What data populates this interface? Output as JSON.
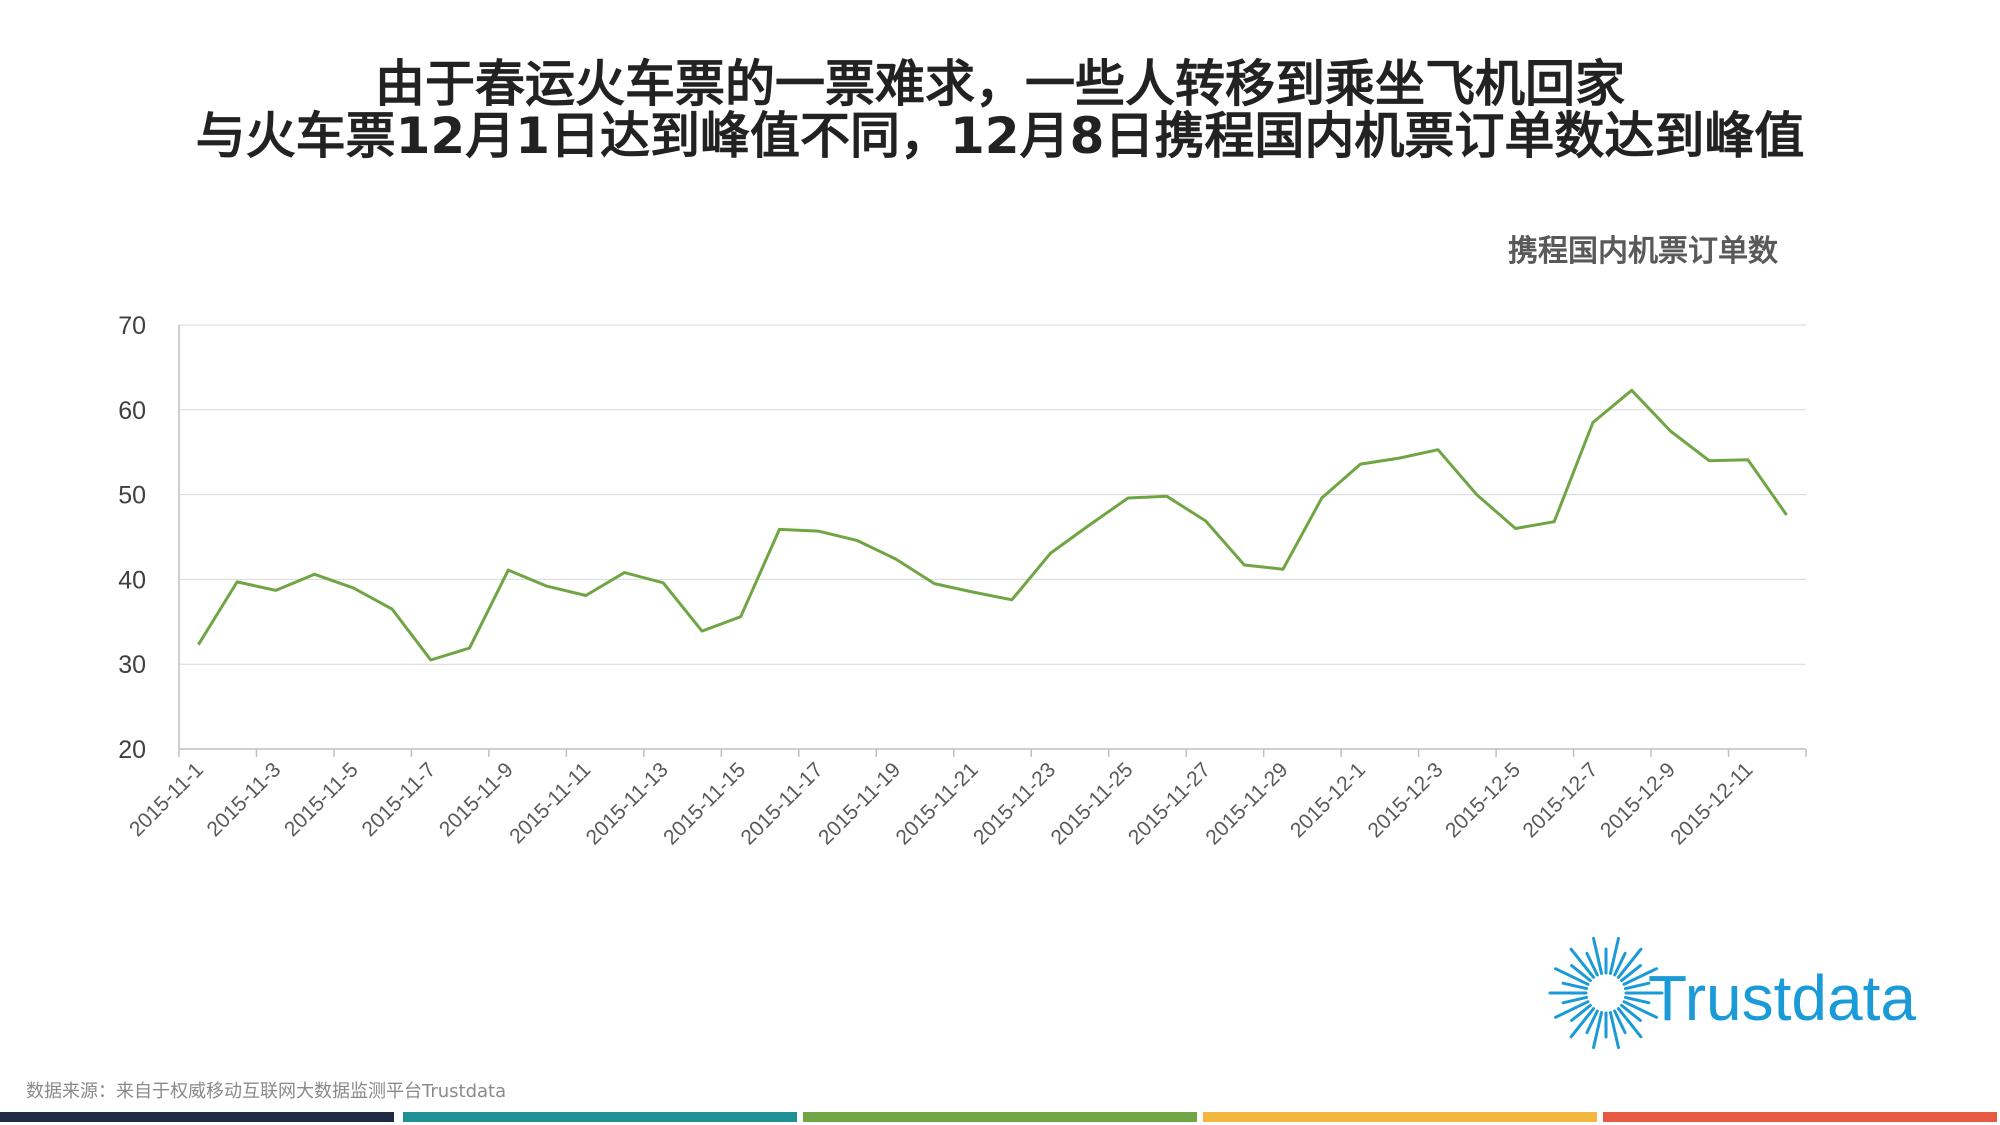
{
  "title_line1": "由于春运火车票的一票难求，一些人转移到乘坐飞机回家",
  "title_line2": "与火车票12月1日达到峰值不同，12月8日携程国内机票订单数达到峰值",
  "source_note": "数据来源：来自于权威移动互联网大数据监测平台Trustdata",
  "logo_text": "Trustdata",
  "colors": {
    "line": "#6fa543",
    "logo": "#1a9ad6",
    "bars": [
      "#1f2a44",
      "#1f9196",
      "#6fa543",
      "#f3b640",
      "#e65a43"
    ]
  },
  "chart_data": {
    "type": "line",
    "title": "",
    "xlabel": "",
    "ylabel": "",
    "ylim": [
      20,
      70
    ],
    "yticks": [
      20,
      30,
      40,
      50,
      60,
      70
    ],
    "grid": true,
    "legend": "top-right",
    "tick_labels": [
      "2015-11-1",
      "2015-11-3",
      "2015-11-5",
      "2015-11-7",
      "2015-11-9",
      "2015-11-11",
      "2015-11-13",
      "2015-11-15",
      "2015-11-17",
      "2015-11-19",
      "2015-11-21",
      "2015-11-23",
      "2015-11-25",
      "2015-11-27",
      "2015-11-29",
      "2015-12-1",
      "2015-12-3",
      "2015-12-5",
      "2015-12-7",
      "2015-12-9",
      "2015-12-11"
    ],
    "x": [
      "2015-11-1",
      "2015-11-2",
      "2015-11-3",
      "2015-11-4",
      "2015-11-5",
      "2015-11-6",
      "2015-11-7",
      "2015-11-8",
      "2015-11-9",
      "2015-11-10",
      "2015-11-11",
      "2015-11-12",
      "2015-11-13",
      "2015-11-14",
      "2015-11-15",
      "2015-11-16",
      "2015-11-17",
      "2015-11-18",
      "2015-11-19",
      "2015-11-20",
      "2015-11-21",
      "2015-11-22",
      "2015-11-23",
      "2015-11-24",
      "2015-11-25",
      "2015-11-26",
      "2015-11-27",
      "2015-11-28",
      "2015-11-29",
      "2015-11-30",
      "2015-12-1",
      "2015-12-2",
      "2015-12-3",
      "2015-12-4",
      "2015-12-5",
      "2015-12-6",
      "2015-12-7",
      "2015-12-8",
      "2015-12-9",
      "2015-12-10",
      "2015-12-11",
      "2015-12-12"
    ],
    "series": [
      {
        "name": "携程国内机票订单数",
        "values": [
          32.3,
          39.7,
          38.7,
          40.6,
          39.0,
          36.5,
          30.5,
          31.9,
          41.1,
          39.2,
          38.1,
          40.8,
          39.6,
          33.9,
          35.6,
          45.9,
          45.7,
          44.6,
          42.4,
          39.5,
          38.5,
          37.6,
          43.1,
          46.4,
          49.6,
          49.8,
          46.9,
          41.7,
          41.2,
          49.6,
          53.6,
          54.3,
          55.3,
          50.0,
          46.0,
          46.8,
          58.5,
          62.3,
          57.5,
          54.0,
          54.1,
          47.6
        ]
      }
    ]
  }
}
